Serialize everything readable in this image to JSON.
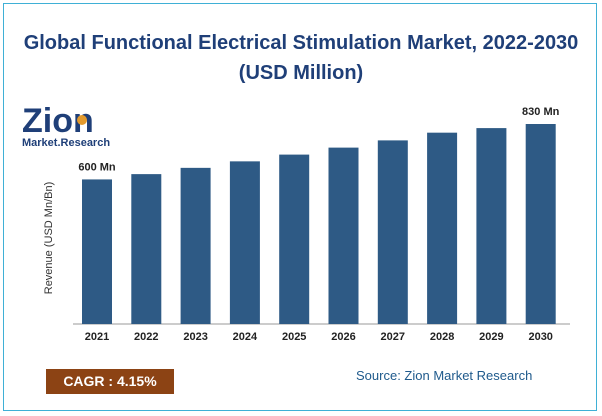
{
  "title_line1": "Global Functional Electrical Stimulation Market, 2022-2030",
  "title_line2": "(USD Million)",
  "logo": {
    "word": "Zion",
    "sub": "Market.Research"
  },
  "cagr": "CAGR : 4.15%",
  "source": "Source: Zion Market Research",
  "colors": {
    "bar": "#2e5a85",
    "title": "#1f3f78",
    "cagr_bg": "#8c4314",
    "logo_dark": "#1f3f78",
    "logo_orange": "#e39a2d",
    "border": "#3fb0d6"
  },
  "chart_data": {
    "type": "bar",
    "categories": [
      "2021",
      "2022",
      "2023",
      "2024",
      "2025",
      "2026",
      "2027",
      "2028",
      "2029",
      "2030"
    ],
    "values": [
      600,
      622,
      648,
      675,
      703,
      732,
      762,
      794,
      813,
      830
    ],
    "data_labels": {
      "0": "600 Mn",
      "9": "830 Mn"
    },
    "xlabel": "",
    "ylabel": "Revenue (USD Mn/Bn)",
    "ylim": [
      0,
      830
    ],
    "grid": false,
    "legend": "none"
  }
}
